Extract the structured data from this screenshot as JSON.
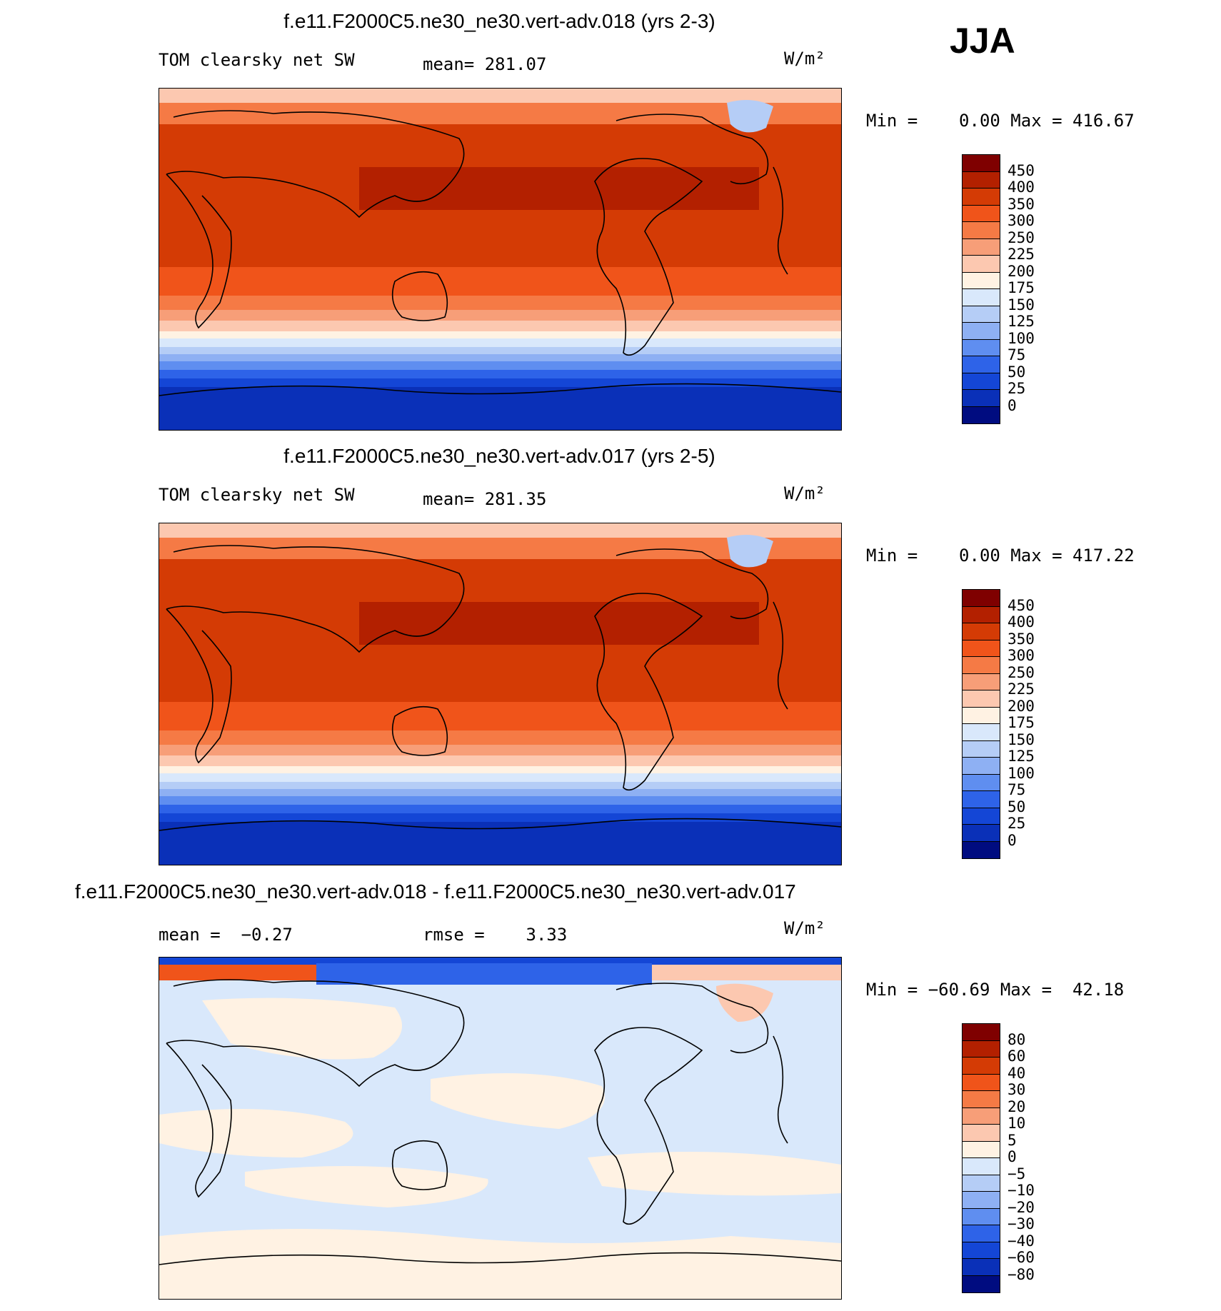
{
  "season": "JJA",
  "panels": [
    {
      "title": "f.e11.F2000C5.ne30_ne30.vert-adv.018 (yrs 2-3)",
      "left_label": "TOM clearsky net SW",
      "mean_text": "mean= 281.07",
      "units": "W/m²",
      "minmax_text": "Min =    0.00 Max = 416.67",
      "type": "absolute"
    },
    {
      "title": "f.e11.F2000C5.ne30_ne30.vert-adv.017 (yrs 2-5)",
      "left_label": "TOM clearsky net SW",
      "mean_text": "mean= 281.35",
      "units": "W/m²",
      "minmax_text": "Min =    0.00 Max = 417.22",
      "type": "absolute"
    },
    {
      "title": "f.e11.F2000C5.ne30_ne30.vert-adv.018 - f.e11.F2000C5.ne30_ne30.vert-adv.017",
      "left_label": "mean =  −0.27",
      "mean_text": "rmse =    3.33",
      "units": "W/m²",
      "minmax_text": "Min = −60.69 Max =  42.18",
      "type": "difference"
    }
  ],
  "colorbars": {
    "absolute": {
      "labels": [
        "450",
        "400",
        "350",
        "300",
        "250",
        "225",
        "200",
        "175",
        "150",
        "125",
        "100",
        "75",
        "50",
        "25",
        "0"
      ],
      "colors": [
        "#7f0000",
        "#b32000",
        "#d43b05",
        "#f0541a",
        "#f57a45",
        "#f79e78",
        "#fcc8b0",
        "#fff2e3",
        "#d9e8fb",
        "#b5cdf6",
        "#8eb0f3",
        "#5f8ef0",
        "#2e63e8",
        "#1446d6",
        "#0a30b8",
        "#000c80"
      ]
    },
    "difference": {
      "labels": [
        "80",
        "60",
        "40",
        "30",
        "20",
        "10",
        "5",
        "0",
        "−5",
        "−10",
        "−20",
        "−30",
        "−40",
        "−60",
        "−80"
      ],
      "colors": [
        "#7f0000",
        "#b32000",
        "#d43b05",
        "#f0541a",
        "#f57a45",
        "#f79e78",
        "#fcc8b0",
        "#fff2e3",
        "#d9e8fb",
        "#b5cdf6",
        "#8eb0f3",
        "#5f8ef0",
        "#2e63e8",
        "#1446d6",
        "#0a30b8",
        "#000c80"
      ]
    }
  }
}
